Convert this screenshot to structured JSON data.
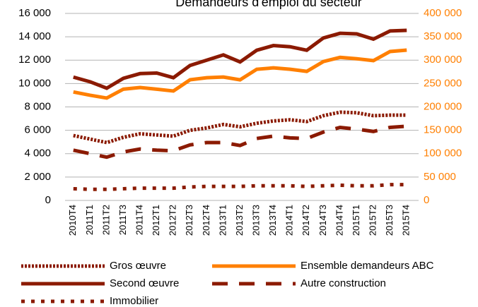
{
  "chart_data": {
    "type": "line",
    "title": "Demandeurs d'emploi du secteur",
    "categories": [
      "2010T4",
      "2011T1",
      "2011T2",
      "2011T3",
      "2011T4",
      "2012T1",
      "2012T2",
      "2012T3",
      "2012T4",
      "2013T1",
      "2013T2",
      "2013T3",
      "2013T4",
      "2014T1",
      "2014T2",
      "2014T3",
      "2014T4",
      "2015T1",
      "2015T2",
      "2015T3",
      "2015T4"
    ],
    "ylim": [
      0,
      16000
    ],
    "yticks": [
      0,
      {
        "value": 2000,
        "label": "2 000"
      },
      {
        "value": 4000,
        "label": "4 000"
      },
      {
        "value": 6000,
        "label": "6 000"
      },
      {
        "value": 8000,
        "label": "8 000"
      },
      {
        "value": 10000,
        "label": "10 000"
      },
      {
        "value": 12000,
        "label": "12 000"
      },
      {
        "value": 14000,
        "label": "14 000"
      },
      {
        "value": 16000,
        "label": "16 000"
      }
    ],
    "y2lim": [
      0,
      400000
    ],
    "y2ticks": [
      0,
      {
        "value": 50000,
        "label": "50 000"
      },
      {
        "value": 100000,
        "label": "100 000"
      },
      {
        "value": 150000,
        "label": "150 000"
      },
      {
        "value": 200000,
        "label": "200 000"
      },
      {
        "value": 250000,
        "label": "250 000"
      },
      {
        "value": 300000,
        "label": "300 000"
      },
      {
        "value": 350000,
        "label": "350 000"
      },
      {
        "value": 400000,
        "label": "400 000"
      }
    ],
    "y2color": "#ff7f00",
    "grid": true,
    "legend": "bottom",
    "series": [
      {
        "name": "Gros œuvre",
        "color": "#8b1a00",
        "dash": "dotted",
        "values": [
          5550,
          5250,
          4950,
          5400,
          5700,
          5600,
          5500,
          6000,
          6200,
          6500,
          6300,
          6600,
          6800,
          6900,
          6750,
          7250,
          7550,
          7500,
          7250,
          7300,
          7300
        ]
      },
      {
        "name": "Ensemble demandeurs ABC",
        "color": "#ff7f00",
        "dash": "solid",
        "axis": "y2",
        "values": [
          232000,
          225000,
          219000,
          238000,
          241500,
          238000,
          234000,
          258000,
          262500,
          264000,
          258000,
          280500,
          283500,
          280500,
          276000,
          297000,
          306000,
          303000,
          299000,
          318500,
          321500
        ]
      },
      {
        "name": "Second œuvre",
        "color": "#8b1a00",
        "dash": "solid",
        "values": [
          10550,
          10150,
          9600,
          10450,
          10850,
          10900,
          10500,
          11550,
          12000,
          12450,
          11850,
          12850,
          13250,
          13150,
          12850,
          13900,
          14300,
          14250,
          13800,
          14500,
          14550
        ]
      },
      {
        "name": "Autre construction",
        "color": "#8b1a00",
        "dash": "dashed",
        "values": [
          4300,
          4000,
          3700,
          4150,
          4400,
          4300,
          4250,
          4750,
          4950,
          4950,
          4700,
          5300,
          5500,
          5350,
          5300,
          5850,
          6250,
          6100,
          5900,
          6250,
          6350
        ]
      },
      {
        "name": "Immobilier",
        "color": "#8b1a00",
        "dash": "dash-dot",
        "values": [
          1000,
          950,
          950,
          1000,
          1050,
          1050,
          1050,
          1150,
          1200,
          1200,
          1200,
          1250,
          1250,
          1250,
          1200,
          1250,
          1300,
          1250,
          1250,
          1350,
          1350
        ]
      }
    ]
  }
}
